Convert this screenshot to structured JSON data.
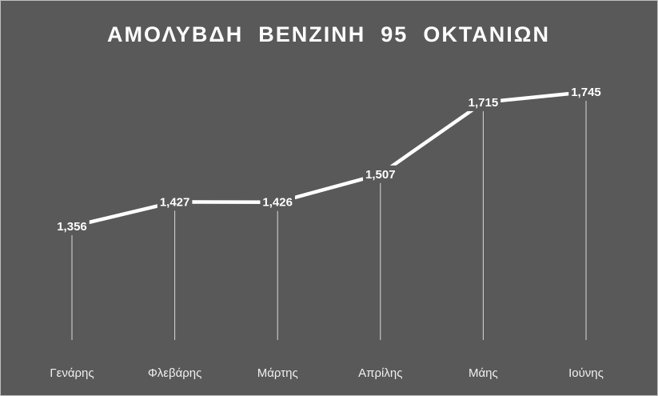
{
  "chart_data": {
    "type": "line",
    "title": "ΑΜΟΛΥΒΔΗ  ΒΕΝΖΙΝΗ  95  ΟΚΤΑΝΙΩΝ",
    "categories": [
      "Γενάρης",
      "Φλεβάρης",
      "Μάρτης",
      "Απρίλης",
      "Μάης",
      "Ιούνης"
    ],
    "values": [
      1.356,
      1.427,
      1.426,
      1.507,
      1.715,
      1.745
    ],
    "value_labels": [
      "1,356",
      "1,427",
      "1,426",
      "1,507",
      "1,715",
      "1,745"
    ],
    "color": "#ffffff"
  }
}
